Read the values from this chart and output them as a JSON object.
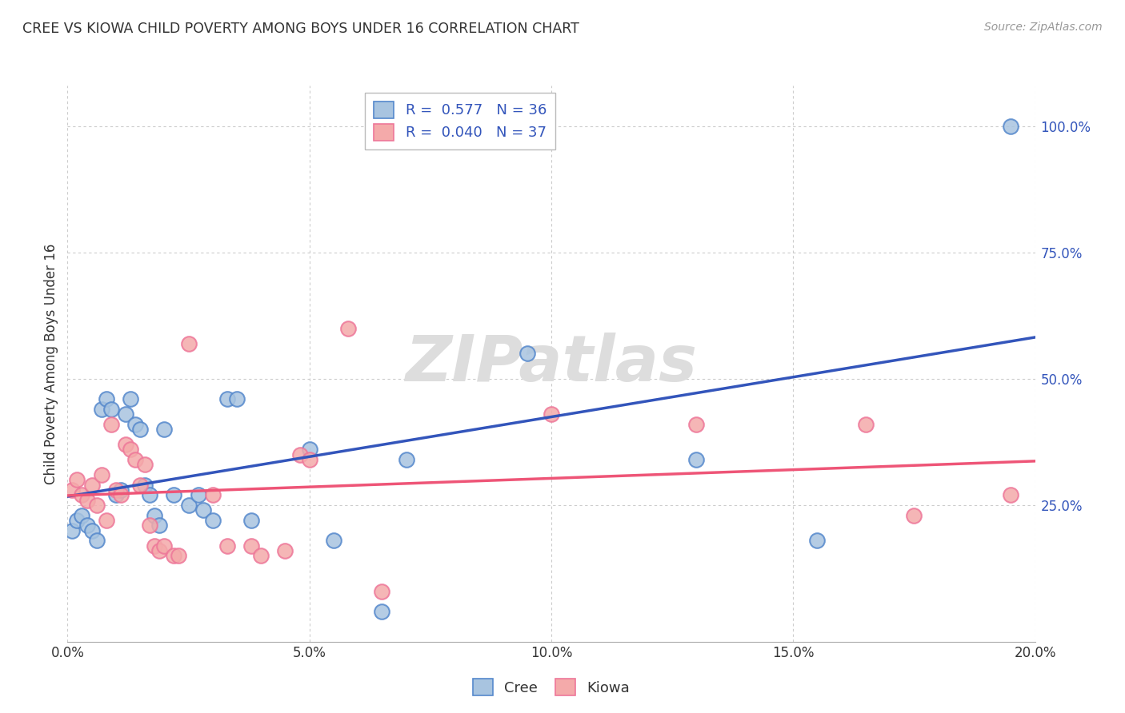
{
  "title": "CREE VS KIOWA CHILD POVERTY AMONG BOYS UNDER 16 CORRELATION CHART",
  "source": "Source: ZipAtlas.com",
  "xlabel": "",
  "ylabel": "Child Poverty Among Boys Under 16",
  "xlim": [
    0.0,
    0.2
  ],
  "ylim": [
    -0.02,
    1.08
  ],
  "xtick_labels": [
    "0.0%",
    "5.0%",
    "10.0%",
    "15.0%",
    "20.0%"
  ],
  "xtick_vals": [
    0.0,
    0.05,
    0.1,
    0.15,
    0.2
  ],
  "ytick_labels": [
    "25.0%",
    "50.0%",
    "75.0%",
    "100.0%"
  ],
  "ytick_vals": [
    0.25,
    0.5,
    0.75,
    1.0
  ],
  "cree_color": "#A8C4E0",
  "kiowa_color": "#F4AAAA",
  "cree_edge_color": "#5588CC",
  "kiowa_edge_color": "#EE7799",
  "cree_line_color": "#3355BB",
  "kiowa_line_color": "#EE5577",
  "cree_R": 0.577,
  "cree_N": 36,
  "kiowa_R": 0.04,
  "kiowa_N": 37,
  "legend_text_color": "#3355BB",
  "cree_x": [
    0.001,
    0.002,
    0.003,
    0.004,
    0.005,
    0.006,
    0.007,
    0.008,
    0.009,
    0.01,
    0.011,
    0.012,
    0.013,
    0.014,
    0.015,
    0.016,
    0.017,
    0.018,
    0.019,
    0.02,
    0.022,
    0.025,
    0.027,
    0.028,
    0.03,
    0.033,
    0.035,
    0.038,
    0.05,
    0.055,
    0.065,
    0.07,
    0.095,
    0.13,
    0.155,
    0.195
  ],
  "cree_y": [
    0.2,
    0.22,
    0.23,
    0.21,
    0.2,
    0.18,
    0.44,
    0.46,
    0.44,
    0.27,
    0.28,
    0.43,
    0.46,
    0.41,
    0.4,
    0.29,
    0.27,
    0.23,
    0.21,
    0.4,
    0.27,
    0.25,
    0.27,
    0.24,
    0.22,
    0.46,
    0.46,
    0.22,
    0.36,
    0.18,
    0.04,
    0.34,
    0.55,
    0.34,
    0.18,
    1.0
  ],
  "kiowa_x": [
    0.001,
    0.002,
    0.003,
    0.004,
    0.005,
    0.006,
    0.007,
    0.008,
    0.009,
    0.01,
    0.011,
    0.012,
    0.013,
    0.014,
    0.015,
    0.016,
    0.017,
    0.018,
    0.019,
    0.02,
    0.022,
    0.023,
    0.025,
    0.03,
    0.033,
    0.038,
    0.04,
    0.045,
    0.048,
    0.05,
    0.058,
    0.065,
    0.1,
    0.13,
    0.165,
    0.175,
    0.195
  ],
  "kiowa_y": [
    0.28,
    0.3,
    0.27,
    0.26,
    0.29,
    0.25,
    0.31,
    0.22,
    0.41,
    0.28,
    0.27,
    0.37,
    0.36,
    0.34,
    0.29,
    0.33,
    0.21,
    0.17,
    0.16,
    0.17,
    0.15,
    0.15,
    0.57,
    0.27,
    0.17,
    0.17,
    0.15,
    0.16,
    0.35,
    0.34,
    0.6,
    0.08,
    0.43,
    0.41,
    0.41,
    0.23,
    0.27
  ],
  "watermark_text": "ZIPatlas",
  "watermark_color": "#DDDDDD",
  "background_color": "#FFFFFF",
  "grid_color": "#CCCCCC",
  "grid_linestyle": "dotted",
  "spine_color": "#AAAAAA",
  "tick_color": "#333333",
  "title_color": "#333333",
  "source_color": "#999999",
  "ylabel_color": "#333333"
}
